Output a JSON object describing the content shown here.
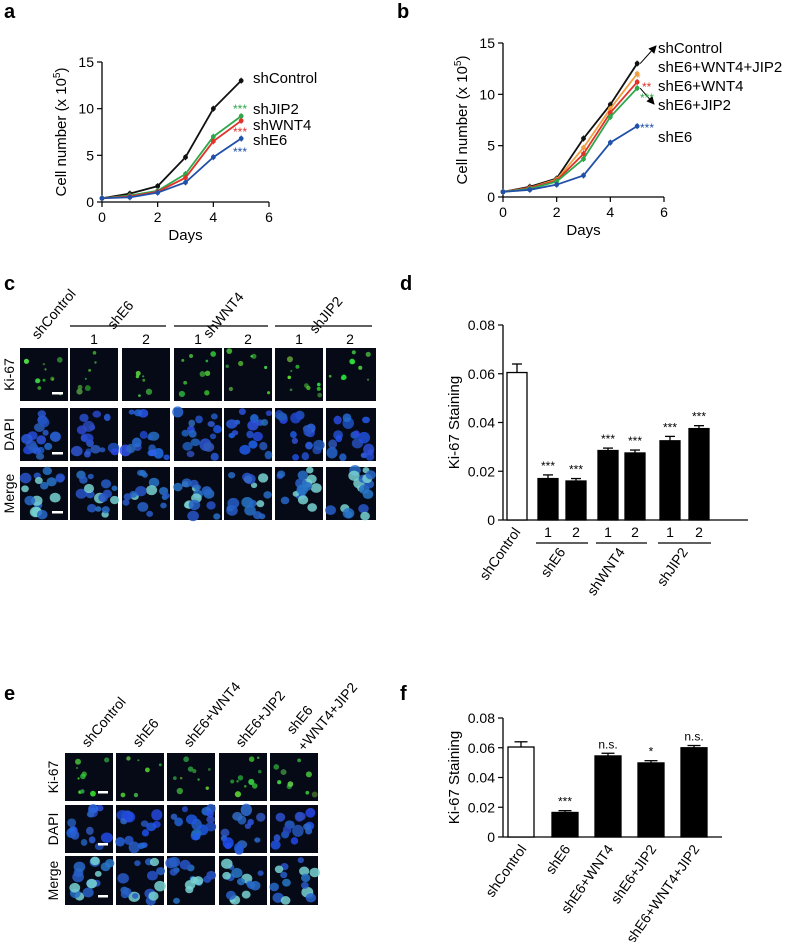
{
  "panels": {
    "a": "a",
    "b": "b",
    "c": "c",
    "d": "d",
    "e": "e",
    "f": "f"
  },
  "colors": {
    "black": "#111111",
    "green": "#2ea84a",
    "red": "#e0342b",
    "blue": "#2050a8",
    "orange": "#f0a040",
    "bar_black": "#000000",
    "bar_white": "#ffffff",
    "green_star": "#2ea84a",
    "red_star": "#e0342b",
    "blue_star": "#2050a8",
    "orange_star": "#f0a040"
  },
  "chart_data": [
    {
      "id": "a",
      "type": "line",
      "xlabel": "Days",
      "ylabel": "Cell number (x 10",
      "ylabel_sup": "5",
      "ylabel_close": ")",
      "xlim": [
        0,
        6
      ],
      "ylim": [
        0,
        15
      ],
      "xticks": [
        0,
        2,
        4,
        6
      ],
      "yticks": [
        0,
        5,
        10,
        15
      ],
      "x": [
        0,
        1,
        2,
        3,
        4,
        5
      ],
      "series": [
        {
          "name": "shControl",
          "color": "#111111",
          "values": [
            0.4,
            0.9,
            1.7,
            4.8,
            10.0,
            13.0
          ],
          "stars": ""
        },
        {
          "name": "shJIP2",
          "color": "#2ea84a",
          "values": [
            0.4,
            0.7,
            1.2,
            3.0,
            7.0,
            9.2
          ],
          "stars": "***"
        },
        {
          "name": "shWNT4",
          "color": "#e0342b",
          "values": [
            0.4,
            0.6,
            1.1,
            2.6,
            6.5,
            8.7
          ],
          "stars": "***"
        },
        {
          "name": "shE6",
          "color": "#2050a8",
          "values": [
            0.4,
            0.5,
            1.0,
            2.1,
            4.8,
            6.8
          ],
          "stars": "***"
        }
      ]
    },
    {
      "id": "b",
      "type": "line",
      "xlabel": "Days",
      "ylabel": "Cell number (x 10",
      "ylabel_sup": "5",
      "ylabel_close": ")",
      "xlim": [
        0,
        6
      ],
      "ylim": [
        0,
        15
      ],
      "xticks": [
        0,
        2,
        4,
        6
      ],
      "yticks": [
        0,
        5,
        10,
        15
      ],
      "x": [
        0,
        1,
        2,
        3,
        4,
        5
      ],
      "series": [
        {
          "name": "shControl",
          "color": "#111111",
          "values": [
            0.5,
            1.0,
            1.8,
            5.7,
            9.0,
            13.0
          ],
          "stars": ""
        },
        {
          "name": "shE6+WNT4+JIP2",
          "color": "#f0a040",
          "values": [
            0.5,
            0.9,
            1.7,
            4.8,
            8.6,
            12.0
          ],
          "stars": "*"
        },
        {
          "name": "shE6+WNT4",
          "color": "#e0342b",
          "values": [
            0.5,
            0.9,
            1.6,
            4.2,
            8.2,
            11.2
          ],
          "stars": "**"
        },
        {
          "name": "shE6+JIP2",
          "color": "#2ea84a",
          "values": [
            0.5,
            0.8,
            1.5,
            3.7,
            7.8,
            10.6
          ],
          "stars": "***"
        },
        {
          "name": "shE6",
          "color": "#2050a8",
          "values": [
            0.5,
            0.7,
            1.2,
            2.1,
            5.3,
            6.9
          ],
          "stars": "***"
        }
      ]
    },
    {
      "id": "d",
      "type": "bar",
      "ylabel": "Ki-67 Staining",
      "ylim": [
        0,
        0.08
      ],
      "yticks": [
        "0",
        "0.02",
        "0.04",
        "0.06",
        "0.08"
      ],
      "ytick_values": [
        0,
        0.02,
        0.04,
        0.06,
        0.08
      ],
      "categories": [
        "shControl",
        "1",
        "2",
        "1",
        "2",
        "1",
        "2"
      ],
      "groups": [
        {
          "name": "shE6",
          "from": 1,
          "to": 2
        },
        {
          "name": "shWNT4",
          "from": 3,
          "to": 4
        },
        {
          "name": "shJIP2",
          "from": 5,
          "to": 6
        }
      ],
      "values": [
        0.0605,
        0.017,
        0.016,
        0.0285,
        0.0275,
        0.0325,
        0.0375
      ],
      "errors": [
        0.0035,
        0.0015,
        0.001,
        0.001,
        0.0012,
        0.0018,
        0.0012
      ],
      "stars": [
        "",
        "***",
        "***",
        "***",
        "***",
        "***",
        "***"
      ],
      "fills": [
        "white",
        "black",
        "black",
        "black",
        "black",
        "black",
        "black"
      ]
    },
    {
      "id": "f",
      "type": "bar",
      "ylabel": "Ki-67 Staining",
      "ylim": [
        0,
        0.08
      ],
      "yticks": [
        "0",
        "0.02",
        "0.04",
        "0.06",
        "0.08"
      ],
      "ytick_values": [
        0,
        0.02,
        0.04,
        0.06,
        0.08
      ],
      "categories": [
        "shControl",
        "shE6",
        "shE6+WNT4",
        "shE6+JIP2",
        "shE6+WNT4+JIP2"
      ],
      "values": [
        0.0605,
        0.0165,
        0.0545,
        0.0498,
        0.06
      ],
      "errors": [
        0.0035,
        0.0012,
        0.0018,
        0.0015,
        0.0015
      ],
      "stars": [
        "",
        "***",
        "n.s.",
        "*",
        "n.s."
      ],
      "fills": [
        "white",
        "black",
        "black",
        "black",
        "black"
      ]
    }
  ],
  "panel_c": {
    "columns": [
      "shControl",
      "shE6",
      "shWNT4",
      "shJIP2"
    ],
    "subcols": [
      "1",
      "2",
      "1",
      "2",
      "1",
      "2"
    ],
    "channels": [
      "Ki-67",
      "DAPI",
      "Merge"
    ]
  },
  "panel_e": {
    "columns": [
      "shControl",
      "shE6",
      "shE6+WNT4",
      "shE6+JIP2",
      "shE6",
      "+WNT4+JIP2"
    ],
    "channels": [
      "Ki-67",
      "DAPI",
      "Merge"
    ]
  }
}
